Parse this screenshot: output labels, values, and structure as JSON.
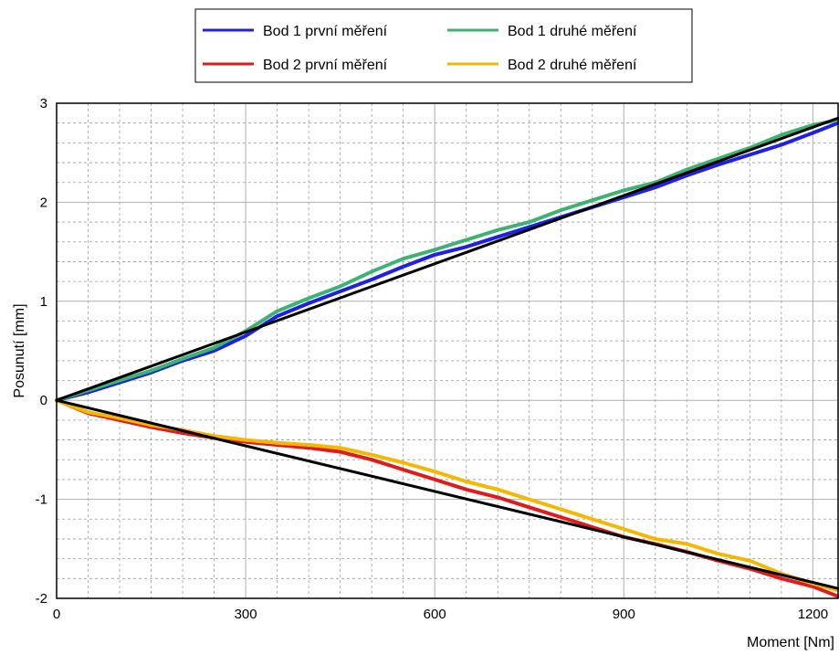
{
  "chart_data": {
    "type": "line",
    "title": "",
    "xlabel": "Moment [Nm]",
    "ylabel": "Posunutí [mm]",
    "xlim": [
      0,
      1240
    ],
    "ylim": [
      -2,
      3
    ],
    "x_major_ticks": [
      0,
      300,
      600,
      900,
      1200
    ],
    "y_major_ticks": [
      -2,
      -1,
      0,
      1,
      2,
      3
    ],
    "x_tick_labels": [
      "0",
      "300",
      "600",
      "900",
      "1200"
    ],
    "y_tick_labels": [
      "-2",
      "-1",
      "0",
      "1",
      "2",
      "3"
    ],
    "grid": {
      "major": true,
      "minor": true
    },
    "legend": {
      "placement": "top-center",
      "entries": [
        {
          "name": "Bod 1 první měření",
          "color": "#1f1fe6"
        },
        {
          "name": "Bod 1 druhé měření",
          "color": "#3cb371"
        },
        {
          "name": "Bod 2 první měření",
          "color": "#e01b1b"
        },
        {
          "name": "Bod 2 druhé měření",
          "color": "#f5b800"
        }
      ]
    },
    "series": [
      {
        "name": "Bod 1 první měření",
        "color": "#1f1fe6",
        "x": [
          0,
          50,
          100,
          150,
          200,
          250,
          300,
          350,
          400,
          450,
          500,
          550,
          600,
          650,
          700,
          750,
          800,
          850,
          900,
          950,
          1000,
          1050,
          1100,
          1150,
          1200,
          1240
        ],
        "y": [
          0.0,
          0.08,
          0.18,
          0.28,
          0.4,
          0.5,
          0.65,
          0.85,
          0.98,
          1.1,
          1.22,
          1.35,
          1.47,
          1.55,
          1.65,
          1.75,
          1.85,
          1.95,
          2.05,
          2.15,
          2.27,
          2.38,
          2.48,
          2.58,
          2.7,
          2.8
        ]
      },
      {
        "name": "Bod 1 druhé měření",
        "color": "#3cb371",
        "x": [
          0,
          50,
          100,
          150,
          200,
          250,
          300,
          350,
          400,
          450,
          500,
          550,
          600,
          650,
          700,
          750,
          800,
          850,
          900,
          950,
          1000,
          1050,
          1100,
          1150,
          1200,
          1240
        ],
        "y": [
          0.0,
          0.1,
          0.2,
          0.3,
          0.42,
          0.53,
          0.7,
          0.9,
          1.03,
          1.15,
          1.3,
          1.43,
          1.52,
          1.62,
          1.72,
          1.8,
          1.92,
          2.02,
          2.12,
          2.2,
          2.33,
          2.44,
          2.55,
          2.68,
          2.78,
          2.83
        ]
      },
      {
        "name": "Bod 2 první měření",
        "color": "#e01b1b",
        "x": [
          0,
          50,
          100,
          150,
          200,
          250,
          300,
          350,
          400,
          450,
          500,
          550,
          600,
          650,
          700,
          750,
          800,
          850,
          900,
          950,
          1000,
          1050,
          1100,
          1150,
          1200,
          1240
        ],
        "y": [
          0.0,
          -0.13,
          -0.2,
          -0.27,
          -0.33,
          -0.38,
          -0.42,
          -0.45,
          -0.48,
          -0.52,
          -0.6,
          -0.7,
          -0.8,
          -0.9,
          -0.98,
          -1.08,
          -1.18,
          -1.28,
          -1.38,
          -1.45,
          -1.53,
          -1.62,
          -1.7,
          -1.8,
          -1.88,
          -1.98
        ]
      },
      {
        "name": "Bod 2 druhé měření",
        "color": "#f5b800",
        "x": [
          0,
          50,
          100,
          150,
          200,
          250,
          300,
          350,
          400,
          450,
          500,
          550,
          600,
          650,
          700,
          750,
          800,
          850,
          900,
          950,
          1000,
          1050,
          1100,
          1150,
          1200,
          1240
        ],
        "y": [
          0.0,
          -0.12,
          -0.18,
          -0.25,
          -0.3,
          -0.36,
          -0.4,
          -0.43,
          -0.45,
          -0.48,
          -0.55,
          -0.63,
          -0.72,
          -0.82,
          -0.9,
          -1.0,
          -1.1,
          -1.2,
          -1.3,
          -1.4,
          -1.45,
          -1.55,
          -1.62,
          -1.75,
          -1.85,
          -1.92
        ]
      },
      {
        "name": "",
        "color": "#000000",
        "x": [
          0,
          1240
        ],
        "y": [
          0.0,
          2.85
        ]
      },
      {
        "name": "",
        "color": "#000000",
        "x": [
          0,
          1240
        ],
        "y": [
          0.0,
          -1.9
        ]
      }
    ]
  }
}
